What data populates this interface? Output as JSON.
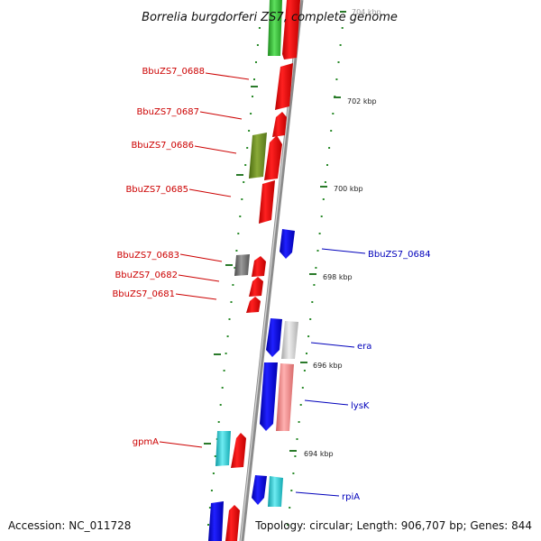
{
  "title": "Borrelia burgdorferi ZS7, complete genome",
  "accession_label": "Accession: NC_011728",
  "summary_label": "Topology: circular; Length: 906,707 bp; Genes: 844",
  "ticks": [
    "704 kbp",
    "702 kbp",
    "700 kbp",
    "698 kbp",
    "696 kbp",
    "694 kbp"
  ],
  "genes_left": [
    "BbuZS7_0688",
    "BbuZS7_0687",
    "BbuZS7_0686",
    "BbuZS7_0685",
    "BbuZS7_0683",
    "BbuZS7_0682",
    "BbuZS7_0681",
    "gpmA"
  ],
  "genes_right": [
    "BbuZS7_0684",
    "era",
    "lysK",
    "rpiA"
  ],
  "colors": {
    "backbone": "#8c8c8c",
    "forward_strand": "#e8000a",
    "reverse_strand": "#0000e0",
    "label_left": "#cc0000",
    "label_right": "#0000bb",
    "tick": "#2a7a2a",
    "green": "#33c033",
    "olive": "#6a8a20",
    "gray": "#6e6e6e",
    "light_gray": "#c8c8c8",
    "cyan": "#22c8d0",
    "pink": "#f08080"
  }
}
